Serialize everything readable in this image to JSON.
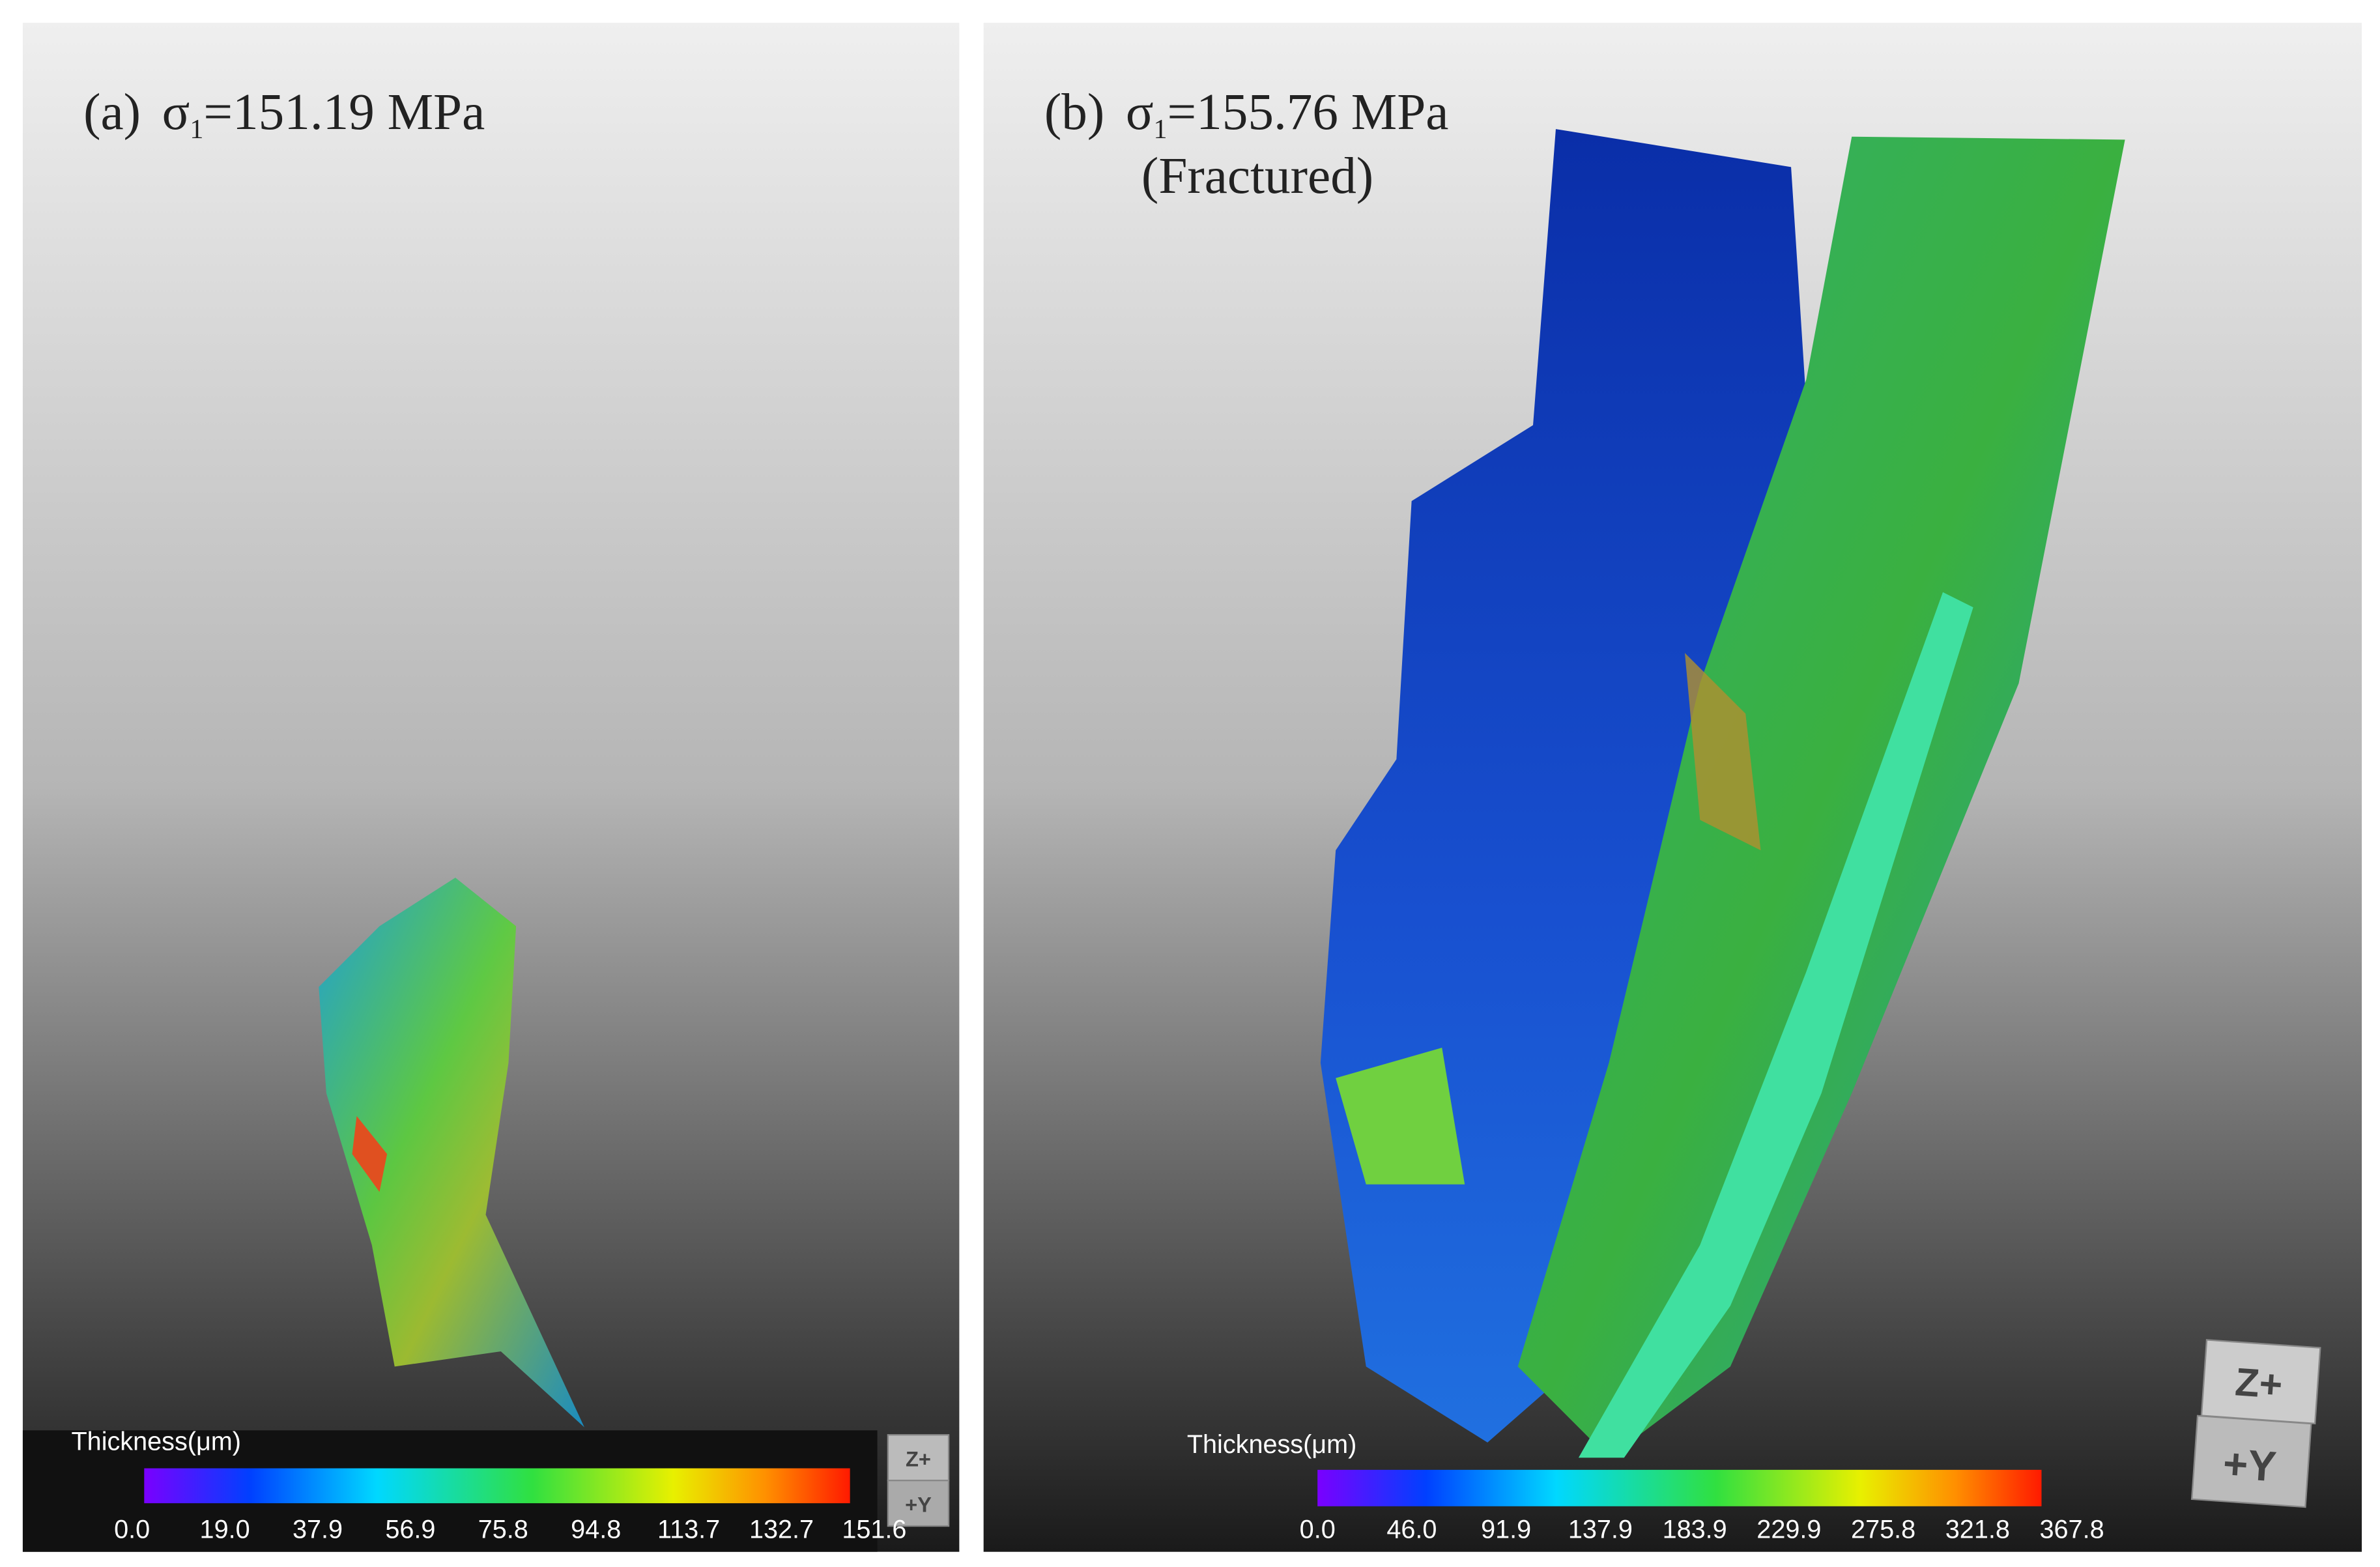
{
  "panels": [
    {
      "label": "(a)",
      "symbol": "σ",
      "subscript": "1",
      "stress": "=151.19 MPa",
      "colorbar": {
        "title": "Thickness(μm)",
        "ticks": [
          "0.0",
          "19.0",
          "37.9",
          "56.9",
          "75.8",
          "94.8",
          "113.7",
          "132.7",
          "151.6"
        ]
      },
      "axes": [
        "Z+",
        "+Y"
      ]
    },
    {
      "label": "(b)",
      "symbol": "σ",
      "subscript": "1",
      "stress": "=155.76 MPa",
      "note": "(Fractured)",
      "colorbar": {
        "title": "Thickness(μm)",
        "ticks": [
          "0.0",
          "46.0",
          "91.9",
          "137.9",
          "183.9",
          "229.9",
          "275.8",
          "321.8",
          "367.8"
        ]
      },
      "axes": [
        "Z+",
        "+Y"
      ]
    }
  ]
}
